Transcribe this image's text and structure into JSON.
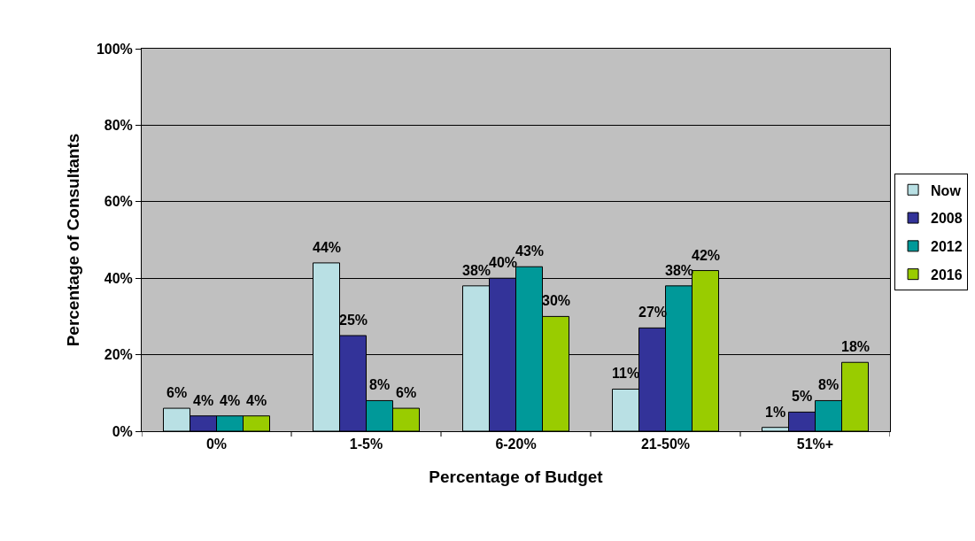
{
  "chart_data": {
    "type": "bar",
    "xlabel": "Percentage of Budget",
    "ylabel": "Percentage of Consultants",
    "categories": [
      "0%",
      "1-5%",
      "6-20%",
      "21-50%",
      "51%+"
    ],
    "series": [
      {
        "name": "Now",
        "color": "#b9e0e4",
        "values": [
          6,
          44,
          38,
          11,
          1
        ],
        "value_labels": [
          "6%",
          "44%",
          "38%",
          "11%",
          "1%"
        ]
      },
      {
        "name": "2008",
        "color": "#333399",
        "values": [
          4,
          25,
          40,
          27,
          5
        ],
        "value_labels": [
          "4%",
          "25%",
          "40%",
          "27%",
          "5%"
        ]
      },
      {
        "name": "2012",
        "color": "#009999",
        "values": [
          4,
          8,
          43,
          38,
          8
        ],
        "value_labels": [
          "4%",
          "8%",
          "43%",
          "38%",
          "8%"
        ]
      },
      {
        "name": "2016",
        "color": "#99cc00",
        "values": [
          4,
          6,
          30,
          42,
          18
        ],
        "value_labels": [
          "4%",
          "6%",
          "30%",
          "42%",
          "18%"
        ]
      }
    ],
    "ylim": [
      0,
      100
    ],
    "yticks": [
      {
        "value": 0,
        "label": "0%"
      },
      {
        "value": 20,
        "label": "20%"
      },
      {
        "value": 40,
        "label": "40%"
      },
      {
        "value": 60,
        "label": "60%"
      },
      {
        "value": 80,
        "label": "80%"
      },
      {
        "value": 100,
        "label": "100%"
      }
    ],
    "grid": "y",
    "legend": "right"
  }
}
